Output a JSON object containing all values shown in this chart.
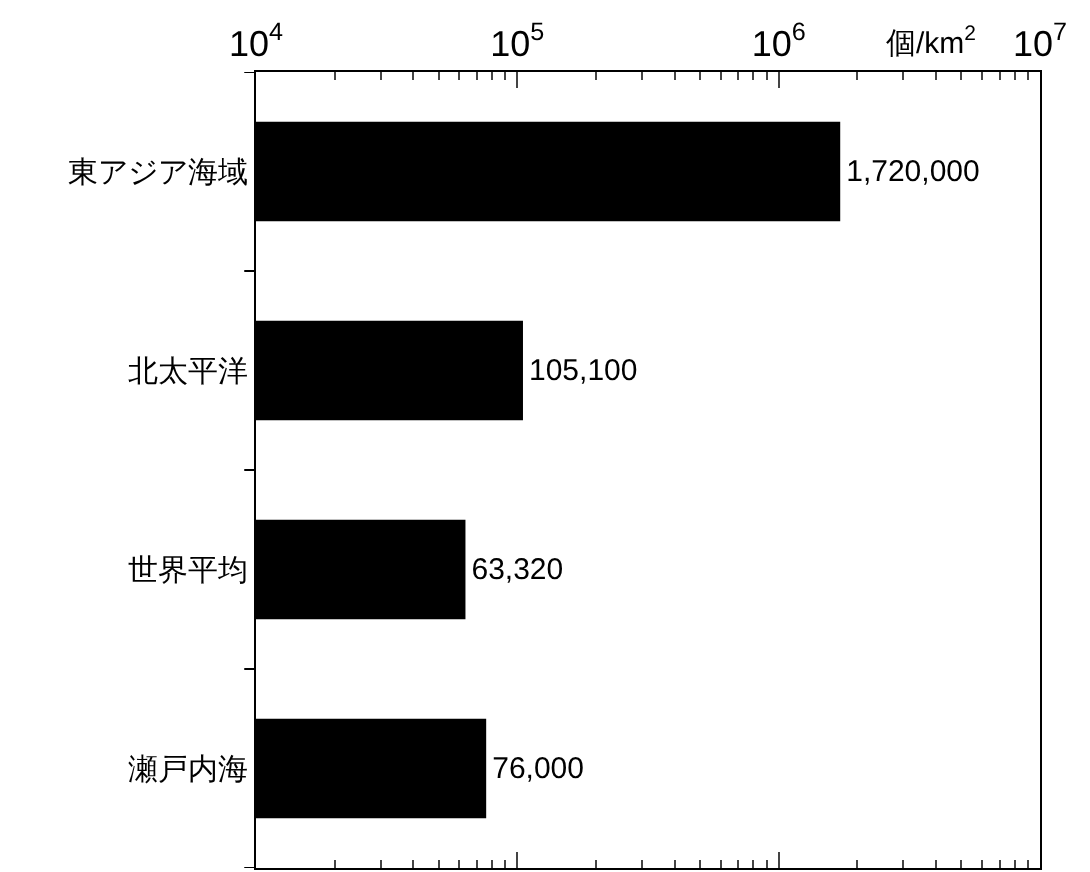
{
  "chart_data": {
    "type": "bar",
    "orientation": "horizontal",
    "log": "x",
    "categories": [
      "東アジア海域",
      "北太平洋",
      "世界平均",
      "瀬戸内海"
    ],
    "values": [
      1720000,
      105100,
      63320,
      76000
    ],
    "color": "#000000",
    "xlabel": "個/km$^{2}$",
    "xlim": [
      10000,
      10000000
    ],
    "xticks": [
      {
        "value": 10000,
        "label": "10$^{4}$"
      },
      {
        "value": 100000,
        "label": "10$^{5}$"
      },
      {
        "value": 1000000,
        "label": "10$^{6}$"
      },
      {
        "value": 10000000,
        "label": "10$^{7}$"
      }
    ],
    "value_labels": [
      "1,720,000",
      "105,100",
      "63,320",
      "76,000"
    ],
    "grid": false
  }
}
